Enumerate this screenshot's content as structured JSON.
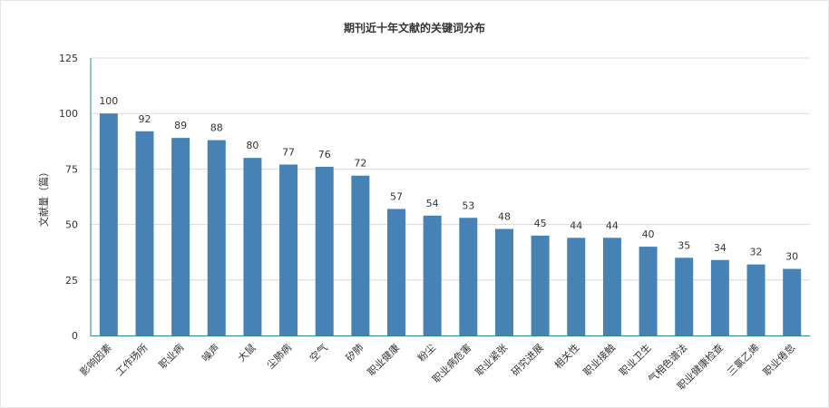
{
  "chart_data": {
    "type": "bar",
    "title": "期刊近十年文献的关键词分布",
    "xlabel": "",
    "ylabel": "文献量（篇）",
    "ylim": [
      0,
      125
    ],
    "yticks": [
      0,
      25,
      50,
      75,
      100,
      125
    ],
    "grid": true,
    "legend": "none",
    "bar_color": "#4682b4",
    "categories": [
      "影响因素",
      "工作场所",
      "职业病",
      "噪声",
      "大鼠",
      "尘肺病",
      "空气",
      "矽肺",
      "职业健康",
      "粉尘",
      "职业病危害",
      "职业紧张",
      "研究进展",
      "相关性",
      "职业接触",
      "职业卫生",
      "气相色谱法",
      "职业健康检查",
      "三氯乙烯",
      "职业倦怠"
    ],
    "values": [
      100,
      92,
      89,
      88,
      80,
      77,
      76,
      72,
      57,
      54,
      53,
      48,
      45,
      44,
      44,
      40,
      35,
      34,
      32,
      30
    ]
  }
}
